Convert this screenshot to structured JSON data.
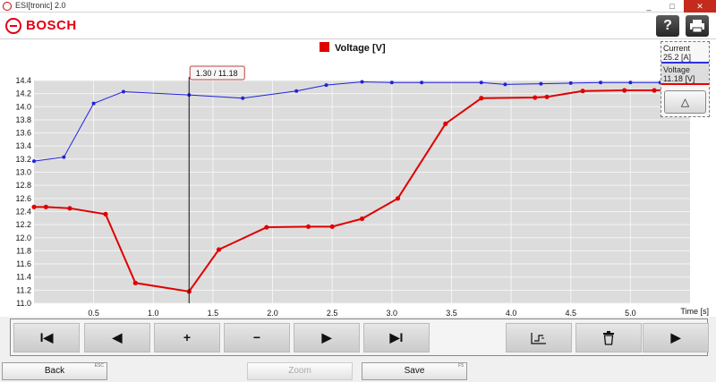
{
  "window": {
    "title": "ESI[tronic] 2.0",
    "minimize": "_",
    "maximize": "□",
    "close": "✕"
  },
  "header": {
    "brand": "BOSCH",
    "help_label": "?",
    "print_icon": "printer-icon"
  },
  "cursor_readout": "1.30 / 11.18",
  "side_legend": {
    "current_name": "Current",
    "current_value": "25.2 [A]",
    "voltage_name": "Voltage",
    "voltage_value": "11.18 [V]",
    "scroll_up_label": "△"
  },
  "toolbar": {
    "first": "I◀",
    "prev": "◀",
    "zoom_in": "+",
    "zoom_out": "−",
    "next": "▶",
    "last": "▶I",
    "trigger_icon": "trigger-icon",
    "delete_icon": "trash-icon",
    "play": "▶"
  },
  "footer": {
    "back_label": "Back",
    "back_key": "ESC",
    "zoom_label": "Zoom",
    "save_label": "Save",
    "save_key": "F5"
  },
  "chart_data": {
    "type": "line",
    "title": "Voltage [V]",
    "xlabel": "Time [s]",
    "ylabel": "",
    "xlim": [
      0,
      5.5
    ],
    "ylim": [
      11.0,
      14.4
    ],
    "x_ticks": [
      0.5,
      1.0,
      1.5,
      2.0,
      2.5,
      3.0,
      3.5,
      4.0,
      4.5,
      5.0
    ],
    "y_ticks": [
      11.0,
      11.2,
      11.4,
      11.6,
      11.8,
      12.0,
      12.2,
      12.4,
      12.6,
      12.8,
      13.0,
      13.2,
      13.4,
      13.6,
      13.8,
      14.0,
      14.2,
      14.4
    ],
    "cursor_x": 1.3,
    "series": [
      {
        "name": "Voltage",
        "color": "#e00000",
        "x": [
          0.0,
          0.1,
          0.3,
          0.6,
          0.85,
          1.3,
          1.55,
          1.95,
          2.3,
          2.5,
          2.75,
          3.05,
          3.45,
          3.75,
          4.2,
          4.3,
          4.6,
          4.95,
          5.2,
          5.5
        ],
        "y": [
          12.47,
          12.47,
          12.45,
          12.36,
          11.31,
          11.18,
          11.82,
          12.16,
          12.17,
          12.17,
          12.29,
          12.6,
          13.74,
          14.13,
          14.14,
          14.15,
          14.24,
          14.25,
          14.25,
          14.25
        ]
      },
      {
        "name": "Current",
        "color": "#2020e0",
        "x": [
          0.0,
          0.25,
          0.5,
          0.75,
          1.3,
          1.75,
          2.2,
          2.45,
          2.75,
          3.0,
          3.25,
          3.75,
          3.95,
          4.25,
          4.5,
          4.75,
          5.0,
          5.25,
          5.5
        ],
        "y": [
          13.17,
          13.23,
          14.05,
          14.23,
          14.18,
          14.13,
          14.24,
          14.33,
          14.38,
          14.37,
          14.37,
          14.37,
          14.34,
          14.35,
          14.36,
          14.37,
          14.37,
          14.37,
          14.37
        ]
      }
    ]
  }
}
